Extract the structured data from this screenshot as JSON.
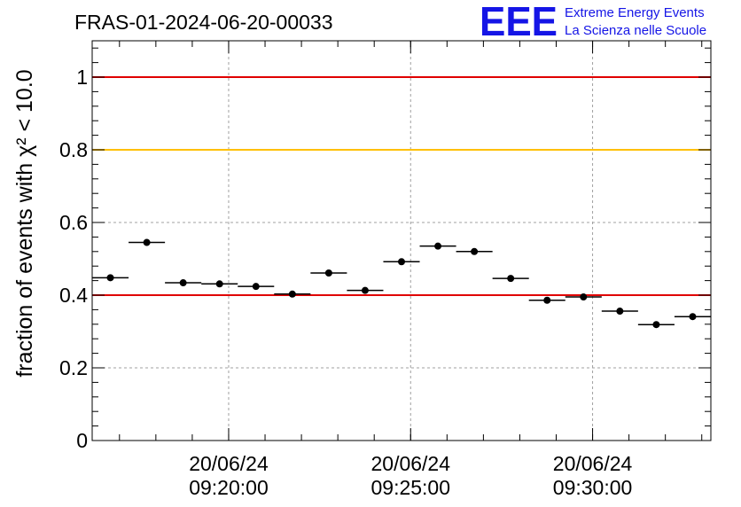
{
  "header": {
    "run_title": "FRAS-01-2024-06-20-00033"
  },
  "logo": {
    "letters": "EEE",
    "line1": "Extreme Energy Events",
    "line2": "La Scienza nelle Scuole",
    "color": "#1515e6"
  },
  "chart_data": {
    "type": "scatter",
    "title": "FRAS-01-2024-06-20-00033",
    "xlabel": "",
    "ylabel": "fraction of events with χ² < 10.0",
    "ylim": [
      0,
      1.1
    ],
    "xlim": [
      "09:16:15",
      "09:33:15"
    ],
    "grid": true,
    "y_ticks": [
      "0",
      "0.2",
      "0.4",
      "0.6",
      "0.8",
      "1"
    ],
    "x_ticks": [
      {
        "date": "20/06/24",
        "time": "09:20:00"
      },
      {
        "date": "20/06/24",
        "time": "09:25:00"
      },
      {
        "date": "20/06/24",
        "time": "09:30:00"
      }
    ],
    "reference_lines": [
      {
        "y": 1.0,
        "color": "#e00000"
      },
      {
        "y": 0.8,
        "color": "#ffc000"
      },
      {
        "y": 0.4,
        "color": "#e00000"
      }
    ],
    "series": [
      {
        "marker_color": "#000000",
        "points": [
          {
            "x_start": "09:16:15",
            "x_end": "09:17:15",
            "y": 0.448
          },
          {
            "x_start": "09:17:15",
            "x_end": "09:18:15",
            "y": 0.545
          },
          {
            "x_start": "09:18:15",
            "x_end": "09:19:15",
            "y": 0.434
          },
          {
            "x_start": "09:19:15",
            "x_end": "09:20:15",
            "y": 0.431
          },
          {
            "x_start": "09:20:15",
            "x_end": "09:21:15",
            "y": 0.424
          },
          {
            "x_start": "09:21:15",
            "x_end": "09:22:15",
            "y": 0.403
          },
          {
            "x_start": "09:22:15",
            "x_end": "09:23:15",
            "y": 0.461
          },
          {
            "x_start": "09:23:15",
            "x_end": "09:24:15",
            "y": 0.413
          },
          {
            "x_start": "09:24:15",
            "x_end": "09:25:15",
            "y": 0.492
          },
          {
            "x_start": "09:25:15",
            "x_end": "09:26:15",
            "y": 0.535
          },
          {
            "x_start": "09:26:15",
            "x_end": "09:27:15",
            "y": 0.52
          },
          {
            "x_start": "09:27:15",
            "x_end": "09:28:15",
            "y": 0.446
          },
          {
            "x_start": "09:28:15",
            "x_end": "09:29:15",
            "y": 0.386
          },
          {
            "x_start": "09:29:15",
            "x_end": "09:30:15",
            "y": 0.395
          },
          {
            "x_start": "09:30:15",
            "x_end": "09:31:15",
            "y": 0.356
          },
          {
            "x_start": "09:31:15",
            "x_end": "09:32:15",
            "y": 0.319
          },
          {
            "x_start": "09:32:15",
            "x_end": "09:33:15",
            "y": 0.341
          }
        ]
      }
    ]
  }
}
